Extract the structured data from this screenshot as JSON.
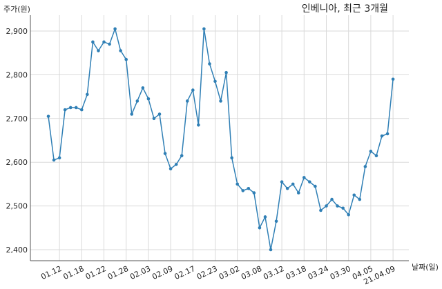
{
  "chart_data": {
    "type": "line",
    "title": "인베니아, 최근 3개월",
    "ylabel": "주가(원)",
    "xlabel": "날짜(일)",
    "ylim": [
      2370,
      2920
    ],
    "yticks": [
      2400,
      2500,
      2600,
      2700,
      2800,
      2900
    ],
    "ytick_labels": [
      "2,400",
      "2,500",
      "2,600",
      "2,700",
      "2,800",
      "2,900"
    ],
    "xtick_indices": [
      2,
      6,
      10,
      14,
      18,
      22,
      26,
      30,
      34,
      38,
      42,
      46,
      50,
      54,
      58,
      62
    ],
    "xtick_labels": [
      "01.12",
      "01.18",
      "01.22",
      "01.28",
      "02.03",
      "02.09",
      "02.17",
      "02.23",
      "03.02",
      "03.08",
      "03.12",
      "03.18",
      "03.24",
      "03.30",
      "04.05",
      "21.04.09"
    ],
    "grid": true,
    "line_color": "#2f7fb5",
    "series": [
      {
        "values": [
          2705,
          2605,
          2610,
          2720,
          2725,
          2725,
          2720,
          2755,
          2875,
          2855,
          2875,
          2870,
          2905,
          2855,
          2835,
          2710,
          2740,
          2770,
          2745,
          2700,
          2710,
          2620,
          2585,
          2595,
          2615,
          2740,
          2765,
          2685,
          2905,
          2825,
          2785,
          2740,
          2805,
          2610,
          2550,
          2535,
          2540,
          2530,
          2450,
          2475,
          2400,
          2465,
          2555,
          2540,
          2550,
          2530,
          2565,
          2555,
          2545,
          2490,
          2500,
          2515,
          2500,
          2495,
          2480,
          2525,
          2515,
          2590,
          2625,
          2615,
          2660,
          2665,
          2790
        ]
      }
    ]
  }
}
